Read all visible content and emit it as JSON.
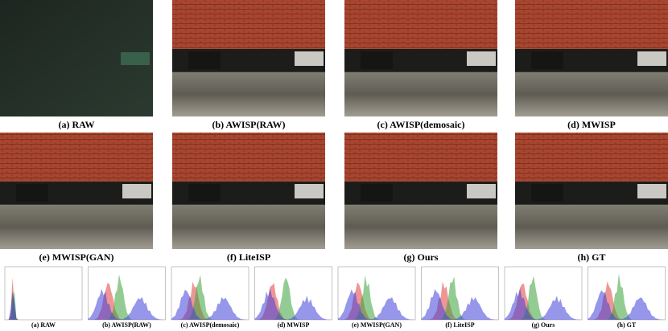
{
  "panels": [
    "(a) RAW",
    "(b) AWISP(RAW)",
    "(c) AWISP(demosaic)",
    "(d) MWISP",
    "(e) MWISP(GAN)",
    "(f) LiteISP",
    "(g) Ours",
    "(h) GT"
  ],
  "histogram_captions": [
    "(a) RAW",
    "(b) AWISP(RAW)",
    "(c) AWISP(demosaic)",
    "(d) MWISP",
    "(e) MWISP(GAN)",
    "(f) LiteISP",
    "(g) Ours",
    "(h) GT"
  ]
}
